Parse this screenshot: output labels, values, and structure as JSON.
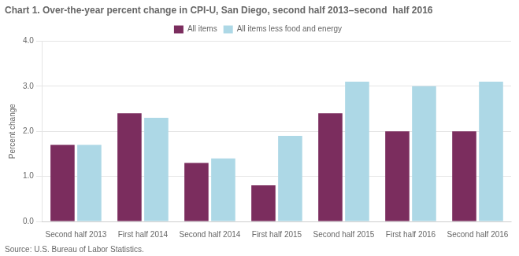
{
  "chart_data": {
    "type": "bar",
    "title": "Chart 1. Over-the-year percent change in CPI-U, San Diego, second half 2013–second  half 2016",
    "ylabel": "Percent change",
    "annotations": [
      "Source: U.S. Bureau of Labor Statistics."
    ],
    "categories": [
      "Second half 2013",
      "First half 2014",
      "Second half 2014",
      "First half 2015",
      "Second half 2015",
      "First half 2016",
      "Second half 2016"
    ],
    "series": [
      {
        "name": "All items",
        "color": "#7B2D5E",
        "values": [
          1.7,
          2.4,
          1.3,
          0.8,
          2.4,
          2.0,
          2.0
        ]
      },
      {
        "name": "All items less food and energy",
        "color": "#ADD8E6",
        "values": [
          1.7,
          2.3,
          1.4,
          1.9,
          3.1,
          3.0,
          3.1
        ]
      }
    ],
    "ylim": [
      0,
      4.0
    ],
    "yticks": [
      {
        "value": 0.0,
        "label": "0.0"
      },
      {
        "value": 1.0,
        "label": "1.0"
      },
      {
        "value": 2.0,
        "label": "2.0"
      },
      {
        "value": 3.0,
        "label": "3.0"
      },
      {
        "value": 4.0,
        "label": "4.0"
      }
    ],
    "grid": "y",
    "legend": "top"
  }
}
